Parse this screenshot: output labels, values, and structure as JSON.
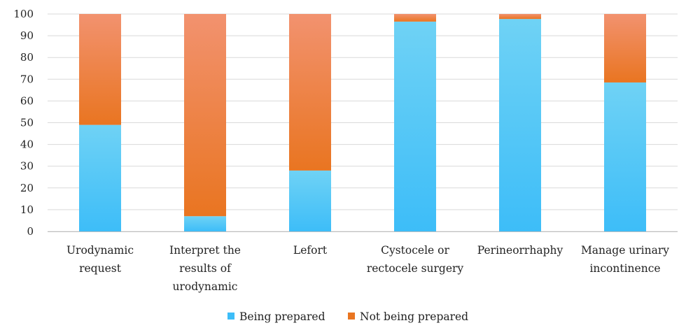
{
  "chart_data": {
    "type": "bar",
    "stacked": true,
    "categories": [
      [
        "Urodynamic",
        "request"
      ],
      [
        "Interpret the",
        "results of",
        "urodynamic"
      ],
      [
        "Lefort"
      ],
      [
        "Cystocele or",
        "rectocele surgery"
      ],
      [
        "Perineorrhaphy"
      ],
      [
        "Manage urinary",
        "incontinence"
      ]
    ],
    "series": [
      {
        "name": "Being prepared",
        "values": [
          49,
          7,
          28,
          96.5,
          97.7,
          68.5
        ],
        "color_top": "#6fd2f5",
        "color_bottom": "#3dbdf8"
      },
      {
        "name": "Not being prepared",
        "values": [
          51,
          93,
          72,
          3.5,
          2.3,
          31.5
        ],
        "color_top": "#f2926f",
        "color_bottom": "#e97521"
      }
    ],
    "ylim": [
      0,
      100
    ],
    "yticks": [
      "0",
      "10",
      "20",
      "30",
      "40",
      "50",
      "60",
      "70",
      "80",
      "90",
      "100"
    ],
    "grid": true,
    "legend_position": "bottom"
  }
}
